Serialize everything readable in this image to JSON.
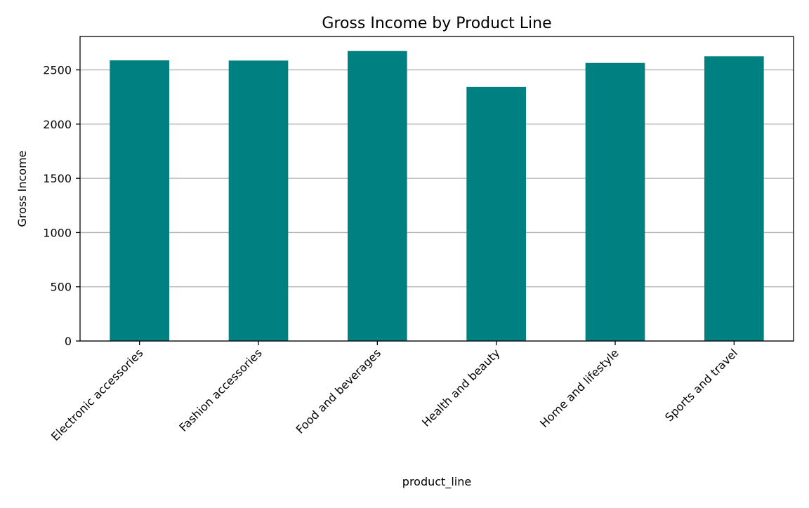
{
  "chart_data": {
    "type": "bar",
    "title": "Gross Income by Product Line",
    "xlabel": "product_line",
    "ylabel": "Gross Income",
    "categories": [
      "Electronic accessories",
      "Fashion accessories",
      "Food and beverages",
      "Health and beauty",
      "Home and lifestyle",
      "Sports and travel"
    ],
    "values": [
      2588,
      2586,
      2674,
      2343,
      2564,
      2625
    ],
    "ylim": [
      0,
      2808
    ],
    "yticks": [
      0,
      500,
      1000,
      1500,
      2000,
      2500
    ],
    "grid": "y",
    "legend": "none",
    "bar_color": "#008080",
    "grid_color": "#b0b0b0"
  }
}
